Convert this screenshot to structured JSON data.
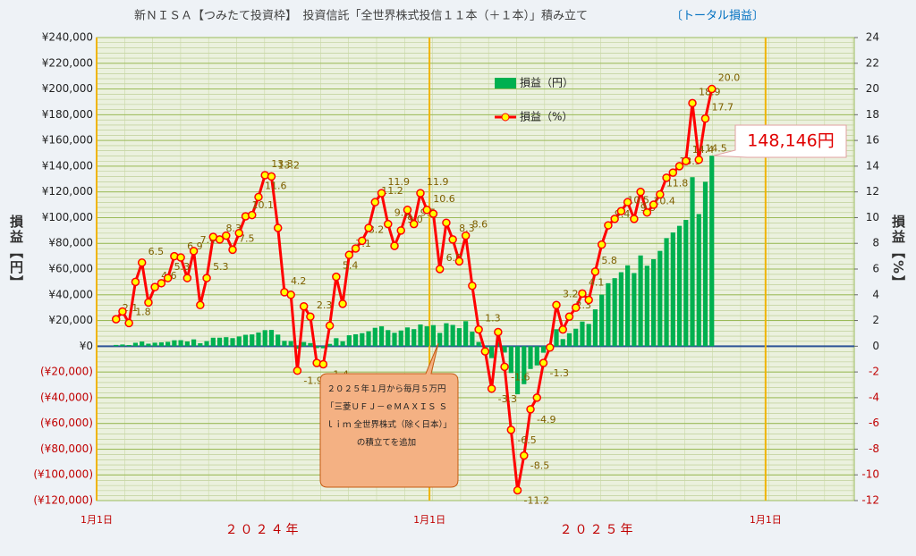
{
  "chart_data": {
    "type": "combo",
    "title": "新ＮＩＳＡ【つみたて投資枠】　投資信託「全世界株式投信１１本（＋１本）」積み立て",
    "subtitle": "〔トータル損益〕",
    "y_label": "損益【円】",
    "y2_label": "損益【%】",
    "annotations": [
      "２０２５年１月から毎月５万円「三菱ＵＦＪ－ｅＭＡＸＩＳ Ｓｌｉｍ 全世界株式（除く日本）」の積立てを追加"
    ],
    "x_group_labels": [
      "２０２４年",
      "２０２５年"
    ],
    "xlim": [
      -3,
      114
    ],
    "xticks": [
      {
        "value": -3,
        "label": "1月1日"
      },
      {
        "value": 48.4,
        "label": "1月1日"
      },
      {
        "value": 100.3,
        "label": "1月1日"
      }
    ],
    "ylim": [
      -120000,
      240000
    ],
    "yticks": [
      {
        "value": -120000,
        "label": "(¥120,000)"
      },
      {
        "value": -100000,
        "label": "(¥100,000)"
      },
      {
        "value": -80000,
        "label": "(¥80,000)"
      },
      {
        "value": -60000,
        "label": "(¥60,000)"
      },
      {
        "value": -40000,
        "label": "(¥40,000)"
      },
      {
        "value": -20000,
        "label": "(¥20,000)"
      },
      {
        "value": 0,
        "label": "¥0"
      },
      {
        "value": 20000,
        "label": "¥20,000"
      },
      {
        "value": 40000,
        "label": "¥40,000"
      },
      {
        "value": 60000,
        "label": "¥60,000"
      },
      {
        "value": 80000,
        "label": "¥80,000"
      },
      {
        "value": 100000,
        "label": "¥100,000"
      },
      {
        "value": 120000,
        "label": "¥120,000"
      },
      {
        "value": 140000,
        "label": "¥140,000"
      },
      {
        "value": 160000,
        "label": "¥160,000"
      },
      {
        "value": 180000,
        "label": "¥180,000"
      },
      {
        "value": 200000,
        "label": "¥200,000"
      },
      {
        "value": 220000,
        "label": "¥220,000"
      },
      {
        "value": 240000,
        "label": "¥240,000"
      }
    ],
    "y2lim": [
      -12,
      24
    ],
    "y2ticks": [
      -12,
      -10,
      -8,
      -6,
      -4,
      -2,
      0,
      2,
      4,
      6,
      8,
      10,
      12,
      14,
      16,
      18,
      20,
      22,
      24
    ],
    "grid": true,
    "categories": [
      null,
      null,
      null,
      null,
      null,
      null,
      null,
      null,
      null,
      null,
      null,
      null,
      null,
      null,
      null,
      null,
      null,
      null,
      null,
      null,
      null,
      null,
      null,
      null,
      null,
      null,
      null,
      null,
      null,
      null,
      null,
      null,
      null,
      null,
      null,
      null,
      null,
      null,
      null,
      null,
      null,
      null,
      null,
      null,
      null,
      null,
      null,
      null,
      null,
      null,
      null,
      null,
      null,
      null,
      null,
      null,
      null,
      null,
      null,
      null,
      null,
      null,
      null,
      null,
      null,
      null,
      null,
      null,
      null,
      null,
      null,
      null,
      null,
      null,
      null,
      null,
      null,
      null,
      null,
      null,
      null,
      null,
      null,
      null,
      null,
      null,
      null,
      null,
      null,
      null,
      null,
      null,
      null
    ],
    "series": [
      {
        "name": "損益（円）",
        "type": "bar",
        "color": "#00b050",
        "values": [
          1000,
          1350,
          936,
          2700,
          3640,
          1972,
          2760,
          3038,
          3392,
          4620,
          4692,
          3710,
          5328,
          2368,
          4028,
          6630,
          6640,
          7052,
          6300,
          7568,
          8888,
          9180,
          10672,
          12502,
          12672,
          9016,
          4200,
          4080,
          -1976,
          3286,
          2484,
          -1430,
          -1568,
          1824,
          6264,
          3894,
          8520,
          9272,
          10168,
          11592,
          14336,
          15470,
          12540,
          10452,
          12240,
          14628,
          13300,
          16898,
          15476,
          16418,
          10368,
          17875,
          16567,
          14058,
          19470,
          11271,
          3292,
          -1066,
          -9240,
          3227,
          -4909,
          -20813,
          -37363,
          -29495,
          -17660,
          -14952,
          -5034,
          -401,
          13248,
          5556,
          10138,
          13626,
          19172,
          17316,
          28675,
          40116,
          48993,
          52925,
          57540,
          62877,
          56905,
          70584,
          62566,
          67650,
          74151,
          84076,
          88452,
          93604,
          98208,
          131431,
          102776,
          127829,
          148146
        ],
        "value_labels": [
          null,
          null,
          null,
          null,
          null,
          null,
          null,
          null,
          null,
          null,
          null,
          null,
          null,
          null,
          null,
          null,
          null,
          null,
          null,
          null,
          null,
          null,
          null,
          null,
          null,
          null,
          null,
          null,
          null,
          null,
          null,
          null,
          null,
          null,
          null,
          null,
          null,
          null,
          null,
          null,
          null,
          null,
          null,
          null,
          null,
          null,
          null,
          null,
          null,
          null,
          null,
          null,
          null,
          null,
          null,
          null,
          null,
          null,
          null,
          null,
          null,
          null,
          null,
          null,
          null,
          null,
          null,
          null,
          null,
          null,
          null,
          null,
          null,
          null,
          null,
          null,
          null,
          null,
          null,
          null,
          null,
          null,
          null,
          null,
          null,
          null,
          null,
          null,
          null,
          null,
          null,
          null,
          "148,146円"
        ]
      },
      {
        "name": "損益（%）",
        "type": "line",
        "axis": "y2",
        "color": "#ff0000",
        "marker_color": "#ffff00",
        "values": [
          2.1,
          2.7,
          1.8,
          5.0,
          6.5,
          3.4,
          4.6,
          4.9,
          5.3,
          7.0,
          6.9,
          5.3,
          7.4,
          3.2,
          5.3,
          8.5,
          8.3,
          8.6,
          7.5,
          8.8,
          10.1,
          10.2,
          11.6,
          13.3,
          13.2,
          9.2,
          4.2,
          4.0,
          -1.9,
          3.1,
          2.3,
          -1.3,
          -1.4,
          1.6,
          5.4,
          3.3,
          7.1,
          7.6,
          8.2,
          9.2,
          11.2,
          11.9,
          9.5,
          7.8,
          9.0,
          10.6,
          9.5,
          11.9,
          10.6,
          10.3,
          6.0,
          9.6,
          8.3,
          6.6,
          8.6,
          4.7,
          1.3,
          -0.4,
          -3.3,
          1.1,
          -1.6,
          -6.5,
          -11.2,
          -8.5,
          -4.9,
          -4.0,
          -1.3,
          -0.1,
          3.2,
          1.3,
          2.3,
          3.0,
          4.1,
          3.6,
          5.8,
          7.9,
          9.4,
          9.9,
          10.5,
          11.2,
          9.9,
          12.0,
          10.4,
          11.0,
          11.8,
          13.1,
          13.5,
          14.0,
          14.4,
          18.9,
          14.5,
          17.7,
          20.0
        ],
        "value_labels": [
          "2.1",
          null,
          "1.8",
          null,
          "6.5",
          null,
          "4.6",
          null,
          "5.3",
          null,
          "6.9",
          null,
          "7.4",
          null,
          "5.3",
          null,
          "8.3",
          null,
          "7.5",
          null,
          "10.1",
          null,
          "11.6",
          "13.3",
          "13.2",
          null,
          "4.2",
          null,
          "-1.9",
          null,
          "2.3",
          null,
          "-1.4",
          null,
          "5.4",
          null,
          "7.1",
          null,
          "8.2",
          null,
          "11.2",
          "11.9",
          "9.5",
          null,
          "9.0",
          null,
          "9.5",
          "11.9",
          "10.6",
          null,
          "6.0",
          null,
          "8.3",
          null,
          "8.6",
          null,
          "1.3",
          null,
          "-3.3",
          null,
          "-1.6",
          "-6.5",
          "-11.2",
          "-8.5",
          "-4.9",
          null,
          "-1.3",
          null,
          "3.2",
          null,
          "2.3",
          null,
          "4.1",
          null,
          "5.8",
          null,
          "9.4",
          null,
          "10.5",
          null,
          "9.9",
          null,
          "10.4",
          null,
          "11.8",
          null,
          "13.5",
          null,
          "14.4",
          "18.9",
          "14.5",
          "17.7",
          "20.0"
        ]
      }
    ]
  }
}
